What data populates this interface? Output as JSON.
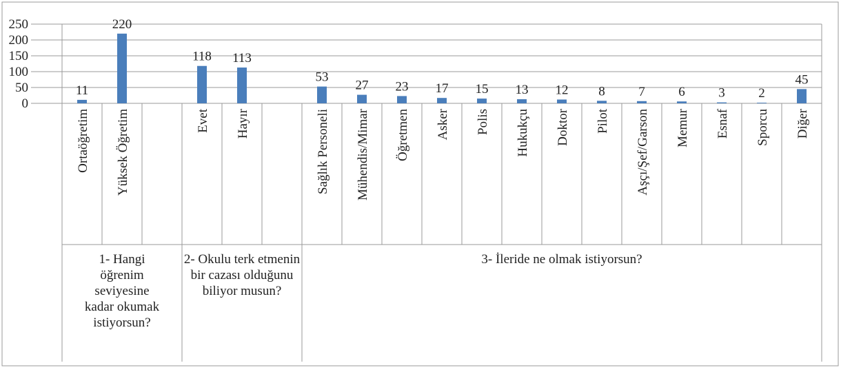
{
  "chart_data": {
    "type": "bar",
    "color": "#4a7ebb",
    "ylim": [
      0,
      250
    ],
    "yticks": [
      0,
      50,
      100,
      150,
      200,
      250
    ],
    "grid": true,
    "groups": [
      {
        "label": "1- Hangi öğrenim seviyesine kadar okumak istiyorsun?",
        "categories": [
          "Ortaöğretim",
          "Yüksek Öğretim",
          null
        ],
        "values": [
          11,
          220,
          null
        ]
      },
      {
        "label": "2- Okulu terk etmenin bir cazası olduğunu biliyor musun?",
        "categories": [
          "Evet",
          "Hayır",
          null
        ],
        "values": [
          118,
          113,
          null
        ]
      },
      {
        "label": "3- İleride ne olmak istiyorsun?",
        "categories": [
          "Sağlık Personeli",
          "Mühendis/Mimar",
          "Öğretmen",
          "Asker",
          "Polis",
          "Hukukçu",
          "Doktor",
          "Pilot",
          "Aşçı/Şef/Garson",
          "Memur",
          "Esnaf",
          "Sporcu",
          "Diğer"
        ],
        "values": [
          53,
          27,
          23,
          17,
          15,
          13,
          12,
          8,
          7,
          6,
          3,
          2,
          45
        ]
      }
    ]
  }
}
